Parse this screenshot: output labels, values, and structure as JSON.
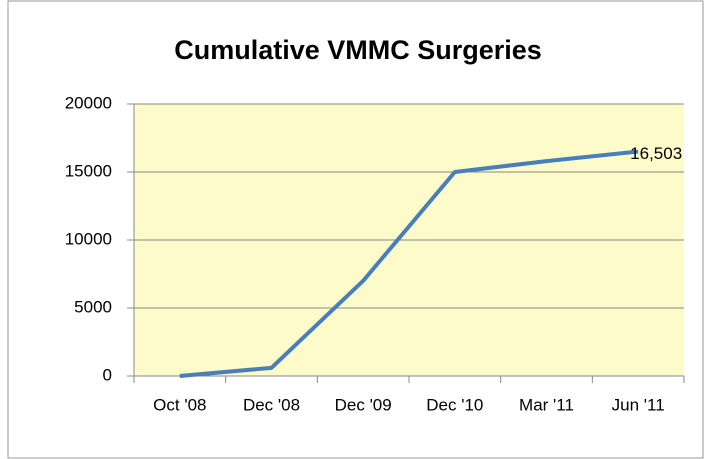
{
  "chart_data": {
    "type": "line",
    "title": "Cumulative VMMC Surgeries",
    "categories": [
      "Oct '08",
      "Dec '08",
      "Dec '09",
      "Dec '10",
      "Mar '11",
      "Jun '11"
    ],
    "series": [
      {
        "name": "Cumulative VMMC Surgeries",
        "color": "#4a7ebb",
        "values": [
          0,
          600,
          7000,
          15000,
          15800,
          16503
        ],
        "value_labels": [
          null,
          null,
          null,
          null,
          null,
          "16,503"
        ]
      }
    ],
    "ylim": [
      0,
      20000
    ],
    "yticks": [
      0,
      5000,
      10000,
      15000,
      20000
    ],
    "grid": true,
    "plot_background": "#fdfbc9"
  }
}
